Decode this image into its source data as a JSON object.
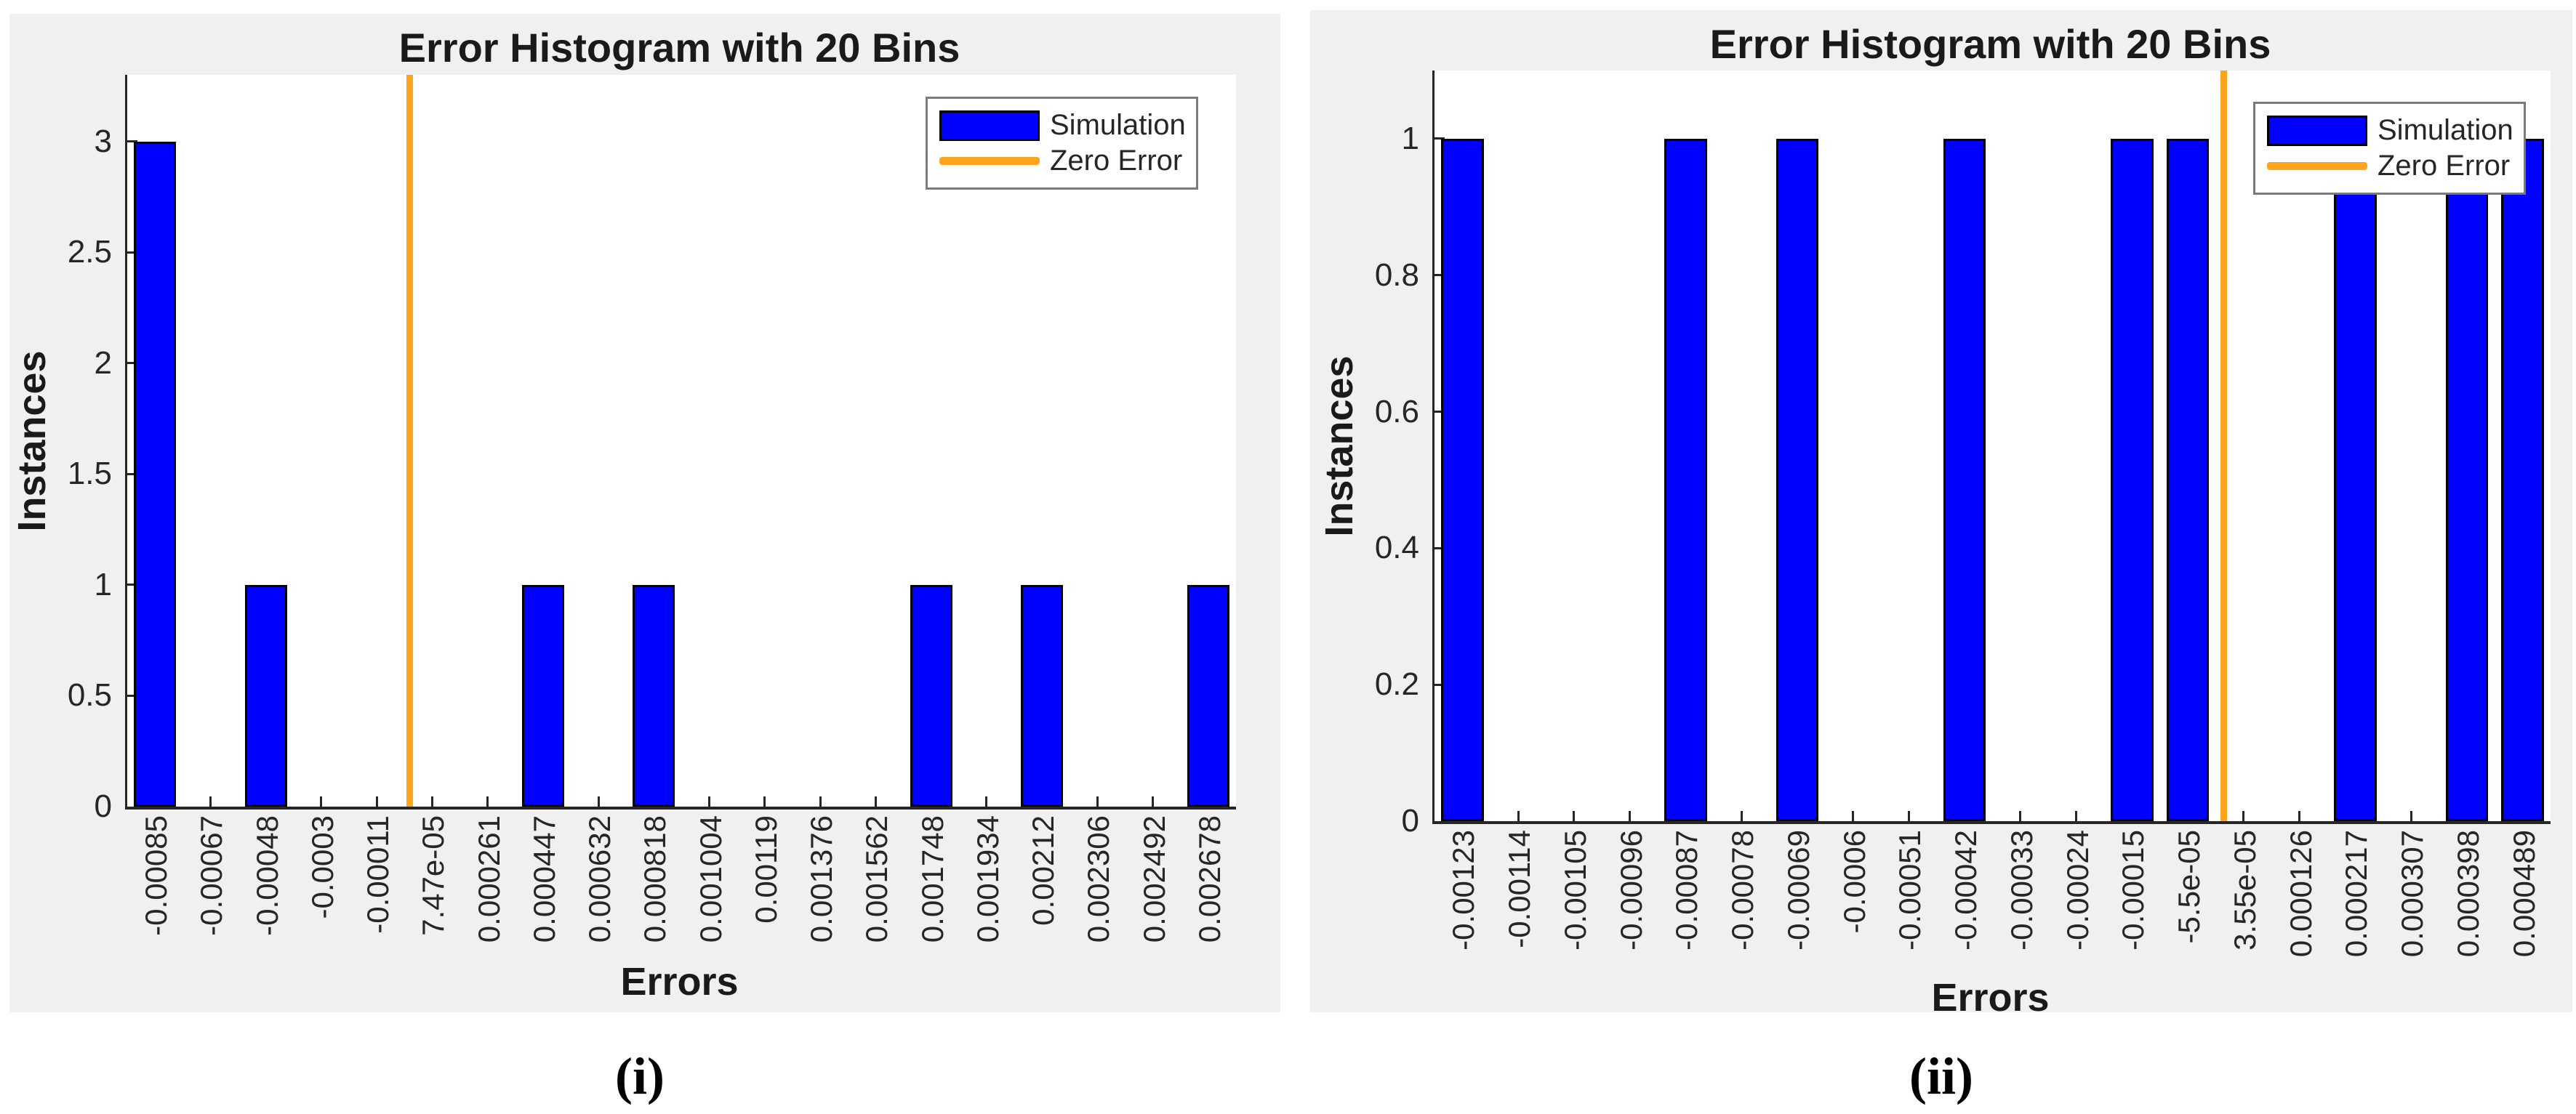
{
  "colors": {
    "bar_fill": "#0000FF",
    "bar_edge": "#000000",
    "zero_error_line": "#FFA41C",
    "panel_background": "#F0F0F0",
    "plot_background": "#FFFFFF",
    "axis": "#262626",
    "legend_border": "#7A7A7A",
    "text": "#1A1A1A"
  },
  "captions": [
    "(i)",
    "(ii)"
  ],
  "chart_data": [
    {
      "type": "bar",
      "title": "Error Histogram with 20 Bins",
      "xlabel": "Errors",
      "ylabel": "Instances",
      "categories": [
        "-0.00085",
        "-0.00067",
        "-0.00048",
        "-0.0003",
        "-0.00011",
        "7.47e-05",
        "0.000261",
        "0.000447",
        "0.000632",
        "0.000818",
        "0.001004",
        "0.00119",
        "0.001376",
        "0.001562",
        "0.001748",
        "0.001934",
        "0.00212",
        "0.002306",
        "0.002492",
        "0.002678"
      ],
      "values": [
        3,
        0,
        1,
        0,
        0,
        0,
        0,
        1,
        0,
        1,
        0,
        0,
        0,
        0,
        1,
        0,
        1,
        0,
        0,
        1
      ],
      "series_name": "Simulation",
      "y_ticks": [
        0,
        0.5,
        1,
        1.5,
        2,
        2.5,
        3
      ],
      "ylim": [
        0,
        3.3
      ],
      "x_tick_label_rotation_deg": 90,
      "grid": false,
      "zero_error_x_value": 0,
      "zero_line_bin_position": 5.09,
      "legend": {
        "position": "top-right",
        "items": [
          {
            "label": "Simulation",
            "marker": "bar"
          },
          {
            "label": "Zero Error",
            "marker": "line"
          }
        ]
      }
    },
    {
      "type": "bar",
      "title": "Error Histogram with 20 Bins",
      "xlabel": "Errors",
      "ylabel": "Instances",
      "categories": [
        "-0.00123",
        "-0.00114",
        "-0.00105",
        "-0.00096",
        "-0.00087",
        "-0.00078",
        "-0.00069",
        "-0.0006",
        "-0.00051",
        "-0.00042",
        "-0.00033",
        "-0.00024",
        "-0.00015",
        "-5.5e-05",
        "3.55e-05",
        "0.000126",
        "0.000217",
        "0.000307",
        "0.000398",
        "0.000489"
      ],
      "values": [
        1,
        0,
        0,
        0,
        1,
        0,
        1,
        0,
        0,
        1,
        0,
        0,
        1,
        1,
        0,
        0,
        1,
        0,
        1,
        1
      ],
      "series_name": "Simulation",
      "y_ticks": [
        0,
        0.2,
        0.4,
        0.6,
        0.8,
        1
      ],
      "ylim": [
        0,
        1.1
      ],
      "x_tick_label_rotation_deg": 90,
      "grid": false,
      "zero_error_x_value": 0,
      "zero_line_bin_position": 14.14,
      "legend": {
        "position": "top-right",
        "items": [
          {
            "label": "Simulation",
            "marker": "bar"
          },
          {
            "label": "Zero Error",
            "marker": "line"
          }
        ]
      }
    }
  ]
}
